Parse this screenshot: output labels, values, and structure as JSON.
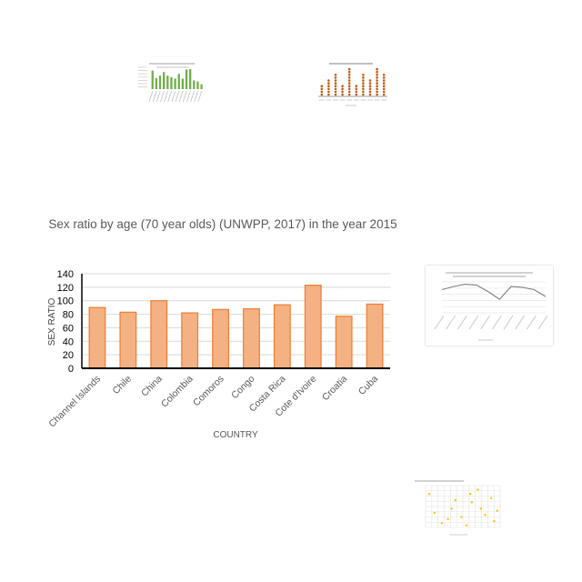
{
  "chart_data": {
    "type": "bar",
    "title": "Sex ratio by age (70 year olds) (UNWPP, 2017) in the year 2015",
    "xlabel": "COUNTRY",
    "ylabel": "SEX RATIO",
    "categories": [
      "Channel Islands",
      "Chile",
      "China",
      "Colombia",
      "Comoros",
      "Congo",
      "Costa Rica",
      "Cote d'Ivoire",
      "Croatia",
      "Cuba"
    ],
    "values": [
      90,
      83,
      100,
      82,
      87,
      88,
      94,
      123,
      77,
      95
    ],
    "ylim": [
      0,
      140
    ],
    "yticks": [
      0,
      20,
      40,
      60,
      80,
      100,
      120,
      140
    ],
    "grid": true,
    "bar_color": "#f4b183",
    "bar_edge": "#ed7d31"
  },
  "thumbnails": {
    "green_bars": {
      "values": [
        85,
        50,
        62,
        78,
        62,
        55,
        48,
        70,
        48,
        90,
        92,
        40,
        35,
        22
      ],
      "color": "#70ad47"
    },
    "dot_columns": {
      "values": [
        4,
        6,
        8,
        4,
        10,
        4,
        8,
        6,
        10,
        8
      ],
      "color": "#c55a11"
    },
    "line": {
      "values": [
        60,
        68,
        74,
        72,
        55,
        35,
        68,
        66,
        60,
        42
      ],
      "color": "#808080"
    },
    "scatter": {
      "color": "#ffc000"
    }
  }
}
